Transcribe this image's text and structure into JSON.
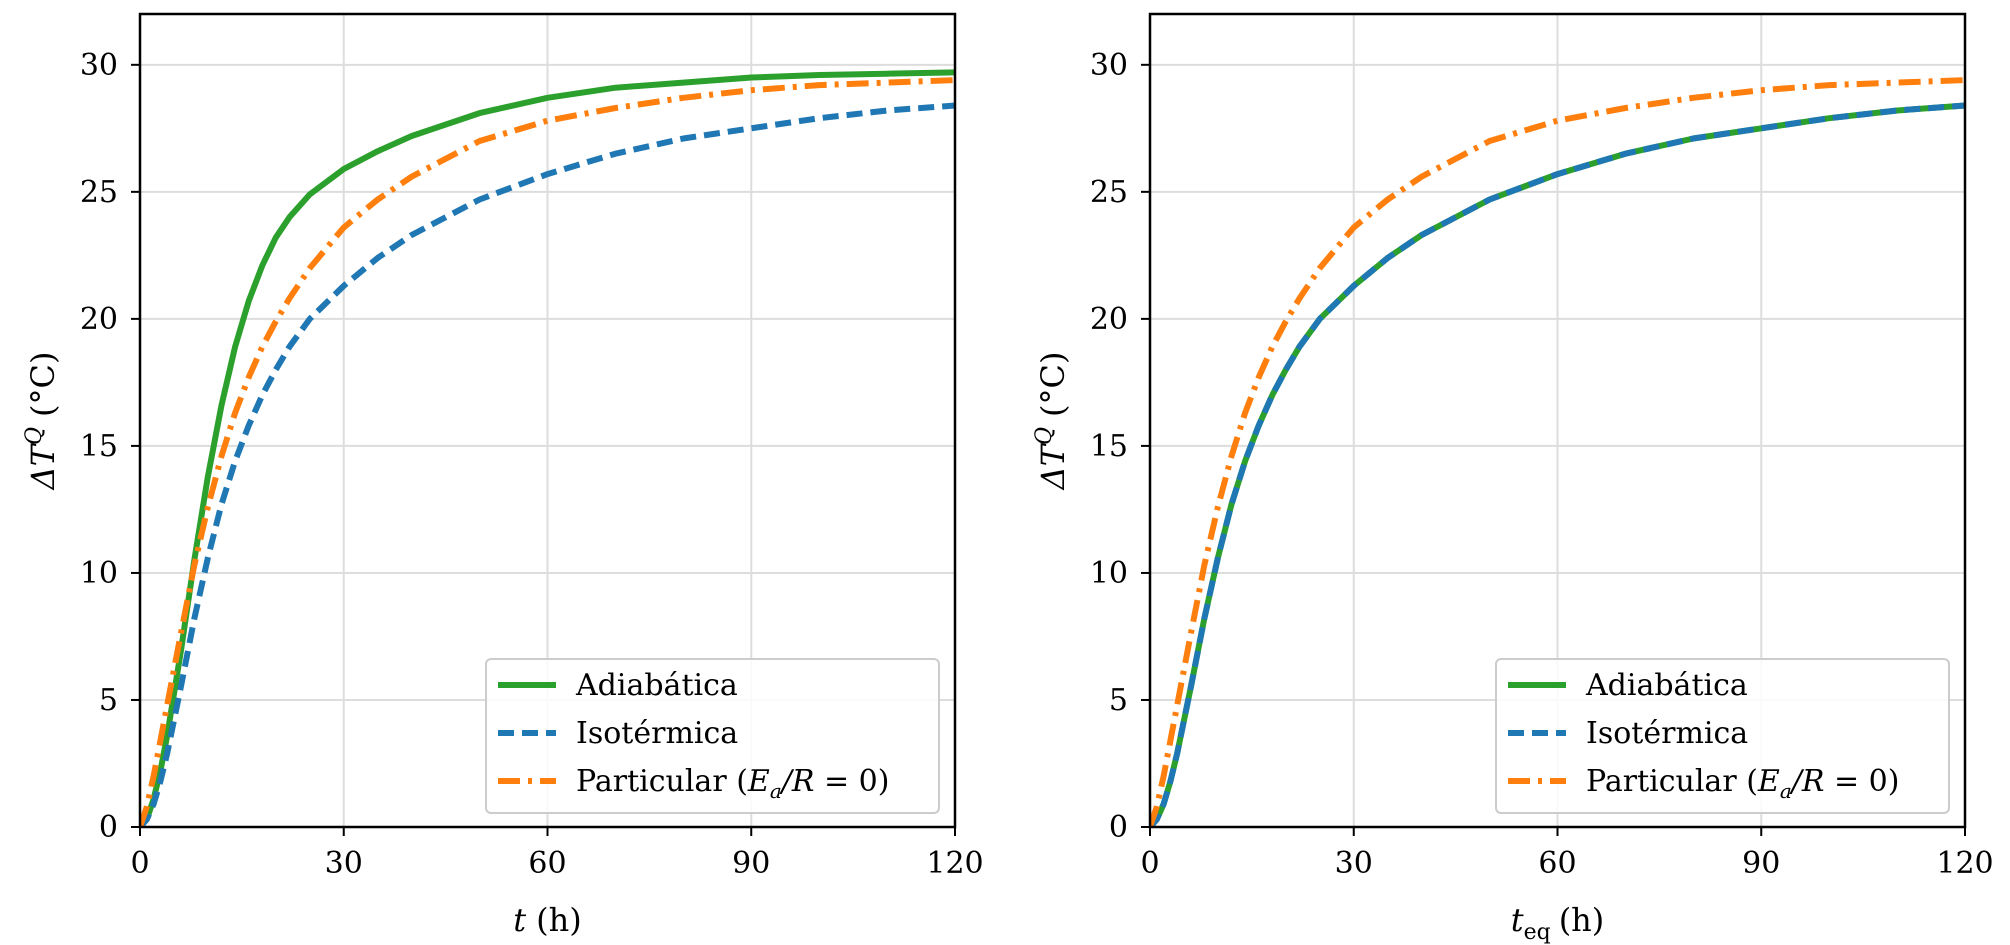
{
  "colors": {
    "adiabatica": "#2ca02c",
    "isotermica": "#1f77b4",
    "particular": "#ff7f0e",
    "grid": "#dddddd",
    "axes": "#000000"
  },
  "legend": {
    "entries": [
      "Adiabática",
      "Isotérmica",
      "Particular (Eₐ/R = 0)"
    ],
    "particular_prefix": "Particular (",
    "particular_math_E": "E",
    "particular_math_sub": "a",
    "particular_math_rest": "/R",
    "particular_suffix": " = 0)",
    "placement": "bottom-right"
  },
  "chart_data": [
    {
      "type": "line",
      "xlabel": "t (h)",
      "xlabel_var": "t",
      "xlabel_unit": "(h)",
      "ylabel": "ΔT^Q (°C)",
      "ylabel_main": "ΔT",
      "ylabel_sup": "Q",
      "ylabel_unit": "(°C)",
      "xlim": [
        0,
        120
      ],
      "ylim": [
        0,
        32
      ],
      "xticks": [
        0,
        30,
        60,
        90,
        120
      ],
      "yticks": [
        0,
        5,
        10,
        15,
        20,
        25,
        30
      ],
      "grid": true,
      "series": [
        {
          "name": "Adiabática",
          "style": "solid",
          "x": [
            0,
            1,
            2,
            3,
            4,
            6,
            8,
            10,
            12,
            14,
            16,
            18,
            20,
            22,
            25,
            30,
            35,
            40,
            50,
            60,
            70,
            80,
            90,
            100,
            110,
            120
          ],
          "y": [
            0,
            0.3,
            1.1,
            2.2,
            3.6,
            6.9,
            10.5,
            13.8,
            16.6,
            18.9,
            20.7,
            22.1,
            23.2,
            24.0,
            24.9,
            25.9,
            26.6,
            27.2,
            28.1,
            28.7,
            29.1,
            29.3,
            29.5,
            29.6,
            29.65,
            29.7
          ]
        },
        {
          "name": "Isotérmica",
          "style": "dashed",
          "x": [
            0,
            1,
            2,
            3,
            4,
            6,
            8,
            10,
            12,
            14,
            16,
            18,
            20,
            22,
            25,
            30,
            35,
            40,
            50,
            60,
            70,
            80,
            90,
            100,
            110,
            120
          ],
          "y": [
            0,
            0.3,
            0.9,
            1.8,
            2.9,
            5.5,
            8.2,
            10.6,
            12.7,
            14.4,
            15.8,
            17.0,
            18.0,
            18.9,
            20.0,
            21.3,
            22.4,
            23.3,
            24.7,
            25.7,
            26.5,
            27.1,
            27.5,
            27.9,
            28.2,
            28.4
          ]
        },
        {
          "name": "Particular (Eₐ/R = 0)",
          "style": "dashdot",
          "x": [
            0,
            1,
            2,
            3,
            4,
            6,
            8,
            10,
            12,
            14,
            16,
            18,
            20,
            22,
            25,
            30,
            35,
            40,
            50,
            60,
            70,
            80,
            90,
            100,
            110,
            120
          ],
          "y": [
            0,
            0.8,
            2.0,
            3.4,
            4.8,
            7.6,
            10.3,
            12.6,
            14.6,
            16.3,
            17.7,
            18.9,
            19.9,
            20.8,
            22.0,
            23.6,
            24.7,
            25.6,
            27.0,
            27.8,
            28.3,
            28.7,
            29.0,
            29.2,
            29.3,
            29.4
          ]
        }
      ]
    },
    {
      "type": "line",
      "xlabel": "t_eq (h)",
      "xlabel_var": "t",
      "xlabel_sub": "eq",
      "xlabel_unit": "(h)",
      "ylabel": "ΔT^Q (°C)",
      "ylabel_main": "ΔT",
      "ylabel_sup": "Q",
      "ylabel_unit": "(°C)",
      "xlim": [
        0,
        120
      ],
      "ylim": [
        0,
        32
      ],
      "xticks": [
        0,
        30,
        60,
        90,
        120
      ],
      "yticks": [
        0,
        5,
        10,
        15,
        20,
        25,
        30
      ],
      "grid": true,
      "series": [
        {
          "name": "Adiabática",
          "style": "solid",
          "x": [
            0,
            1,
            2,
            3,
            4,
            6,
            8,
            10,
            12,
            14,
            16,
            18,
            20,
            22,
            25,
            30,
            35,
            40,
            50,
            60,
            70,
            80,
            90,
            100,
            110,
            120
          ],
          "y": [
            0,
            0.3,
            0.9,
            1.8,
            2.9,
            5.5,
            8.2,
            10.6,
            12.7,
            14.4,
            15.8,
            17.0,
            18.0,
            18.9,
            20.0,
            21.3,
            22.4,
            23.3,
            24.7,
            25.7,
            26.5,
            27.1,
            27.5,
            27.9,
            28.2,
            28.4
          ]
        },
        {
          "name": "Isotérmica",
          "style": "dashed",
          "x": [
            0,
            1,
            2,
            3,
            4,
            6,
            8,
            10,
            12,
            14,
            16,
            18,
            20,
            22,
            25,
            30,
            35,
            40,
            50,
            60,
            70,
            80,
            90,
            100,
            110,
            120
          ],
          "y": [
            0,
            0.3,
            0.9,
            1.8,
            2.9,
            5.5,
            8.2,
            10.6,
            12.7,
            14.4,
            15.8,
            17.0,
            18.0,
            18.9,
            20.0,
            21.3,
            22.4,
            23.3,
            24.7,
            25.7,
            26.5,
            27.1,
            27.5,
            27.9,
            28.2,
            28.4
          ]
        },
        {
          "name": "Particular (Eₐ/R = 0)",
          "style": "dashdot",
          "x": [
            0,
            1,
            2,
            3,
            4,
            6,
            8,
            10,
            12,
            14,
            16,
            18,
            20,
            22,
            25,
            30,
            35,
            40,
            50,
            60,
            70,
            80,
            90,
            100,
            110,
            120
          ],
          "y": [
            0,
            0.8,
            2.0,
            3.4,
            4.8,
            7.6,
            10.3,
            12.6,
            14.6,
            16.3,
            17.7,
            18.9,
            19.9,
            20.8,
            22.0,
            23.6,
            24.7,
            25.6,
            27.0,
            27.8,
            28.3,
            28.7,
            29.0,
            29.2,
            29.3,
            29.4
          ]
        }
      ]
    }
  ]
}
